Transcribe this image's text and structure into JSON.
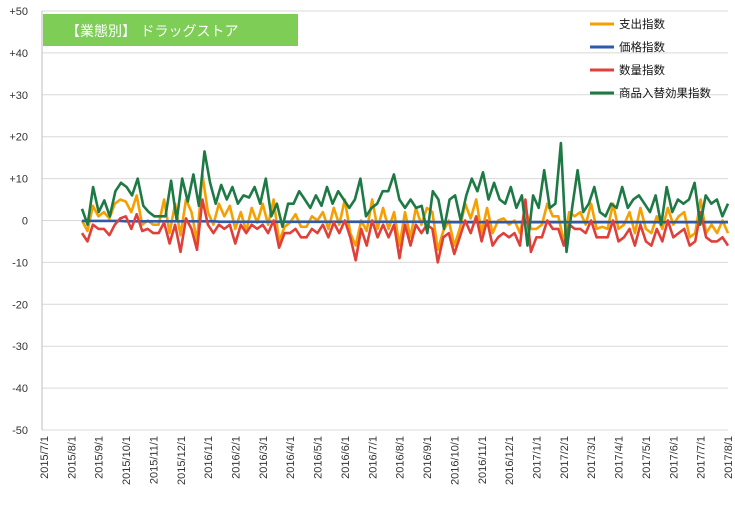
{
  "chart_data": {
    "type": "line",
    "title": "【業態別】 ドラッグストア",
    "ylim": [
      -50,
      50
    ],
    "ytick_labels": [
      "+50",
      "+40",
      "+30",
      "+20",
      "+10",
      "0",
      "-10",
      "-20",
      "-30",
      "-40",
      "-50"
    ],
    "x_tick_labels": [
      "2015/7/1",
      "2015/8/1",
      "2015/9/1",
      "2015/10/1",
      "2015/11/1",
      "2015/12/1",
      "2016/1/1",
      "2016/2/1",
      "2016/3/1",
      "2016/4/1",
      "2016/5/1",
      "2016/6/1",
      "2016/7/1",
      "2016/8/1",
      "2016/9/1",
      "2016/10/1",
      "2016/11/1",
      "2016/12/1",
      "2017/1/1",
      "2017/2/1",
      "2017/3/1",
      "2017/4/1",
      "2017/5/1",
      "2017/6/1",
      "2017/7/1",
      "2017/8/1"
    ],
    "legend_position": "top-right",
    "grid": true,
    "series": [
      {
        "name": "支出指数",
        "color": "#f5a000",
        "values": [
          0,
          -2.5,
          3.5,
          1,
          2,
          0.5,
          4,
          5,
          4.5,
          2,
          6,
          -1,
          0,
          -1,
          -1,
          5,
          -3,
          4,
          -3.5,
          5,
          2,
          -5,
          11,
          2,
          -1,
          4,
          1,
          3.5,
          -2,
          2,
          -2.5,
          3,
          -0.5,
          4,
          -1,
          5,
          -5,
          -1.5,
          -0.5,
          1.5,
          -1.5,
          -1.5,
          1,
          0,
          2,
          -2,
          3,
          -1,
          5,
          -3,
          -6,
          0,
          -2.5,
          5,
          -2,
          3,
          -2,
          2,
          -6,
          2,
          -4,
          3,
          -1,
          3,
          2,
          -7,
          -2.5,
          0,
          -6,
          -2,
          4,
          0.5,
          5,
          -3,
          3,
          -3,
          0,
          0.5,
          -1,
          0,
          -3,
          3,
          -2,
          -2,
          -1,
          4,
          1,
          1,
          -5,
          2,
          1,
          2,
          -1,
          4,
          -2,
          -1.5,
          -2,
          4,
          -2,
          -1,
          2,
          -3,
          3,
          -2,
          -3,
          1,
          -2,
          3,
          -1,
          1,
          2,
          -4,
          -3,
          5,
          -3,
          -1,
          -3,
          0,
          -3
        ]
      },
      {
        "name": "価格指数",
        "color": "#2e5aa8",
        "values": [
          -0.1,
          -0.1,
          -0.1,
          -0.1,
          -0.1,
          -0.1,
          -0.1,
          -0.1,
          -0.2,
          -0.2,
          -0.2,
          -0.2,
          -0.2,
          -0.2,
          -0.2,
          -0.2,
          -0.2,
          -0.2,
          -0.2,
          -0.2,
          -0.2,
          -0.2,
          -0.2,
          -0.2,
          -0.2,
          -0.3,
          -0.3,
          -0.3,
          -0.3,
          -0.3,
          -0.3,
          -0.3,
          -0.3,
          -0.3,
          -0.3,
          -0.3,
          -0.3,
          -0.3,
          -0.3,
          -0.3,
          -0.3,
          -0.3,
          -0.3,
          -0.3,
          -0.3,
          -0.3,
          -0.3,
          -0.3,
          -0.3,
          -0.3,
          -0.3,
          -0.3,
          -0.3,
          -0.3,
          -0.3,
          -0.3,
          -0.3,
          -0.3,
          -0.3,
          -0.3,
          -0.3,
          -0.3,
          -0.3,
          -0.3,
          -0.4,
          -0.4,
          -0.4,
          -0.4,
          -0.4,
          -0.4,
          -0.4,
          -0.4,
          -0.4,
          -0.4,
          -0.4,
          -0.4,
          -0.4,
          -0.4,
          -0.4,
          -0.4,
          -0.4,
          -0.4,
          -0.4,
          -0.4,
          -0.4,
          -0.4,
          -0.4,
          -0.4,
          -0.4,
          -0.4,
          -0.4,
          -0.4,
          -0.4,
          -0.4,
          -0.4,
          -0.4,
          -0.4,
          -0.4,
          -0.4,
          -0.4,
          -0.4,
          -0.4,
          -0.4,
          -0.4,
          -0.4,
          -0.4,
          -0.4,
          -0.4,
          -0.4,
          -0.4,
          -0.4,
          -0.4,
          -0.4,
          -0.4,
          -0.4,
          -0.4,
          -0.4,
          -0.4
        ]
      },
      {
        "name": "数量指数",
        "color": "#e0403a",
        "values": [
          -3,
          -5,
          -1,
          -2,
          -2,
          -3.5,
          -1,
          0.5,
          1,
          -2,
          1.5,
          -2.5,
          -2,
          -3,
          -3,
          -0.5,
          -5.5,
          -1,
          -7.5,
          0.5,
          -2,
          -7,
          5,
          -1,
          -3,
          -1,
          -2,
          -1,
          -5.5,
          -1,
          -3,
          -1,
          -2,
          -1,
          -3,
          0,
          -6.5,
          -3,
          -3,
          -2,
          -4,
          -4,
          -2,
          -3,
          -1,
          -4,
          -0.5,
          -3,
          0,
          -4,
          -9.5,
          -2,
          -6,
          0,
          -4,
          -1,
          -4,
          -1,
          -9,
          -1,
          -6,
          -1,
          -3,
          -1,
          -2,
          -10,
          -4,
          -3,
          -8,
          -4,
          0,
          -3,
          1,
          -5,
          0,
          -6,
          -4,
          -3,
          -4,
          -3,
          -6,
          5,
          -7.5,
          -4,
          -4,
          0,
          -2,
          -2,
          -6,
          -1,
          -2,
          -2,
          -3,
          0,
          -4,
          -4,
          -4,
          0,
          -5,
          -4,
          -2,
          -6,
          -1,
          -5,
          -6,
          -2,
          -5,
          0,
          -4,
          -3,
          -2,
          -6,
          -5,
          2,
          -4,
          -5,
          -5,
          -4,
          -6
        ]
      },
      {
        "name": "商品入替効果指数",
        "color": "#1e7a45",
        "values": [
          2.8,
          -1,
          8,
          2,
          4.8,
          1,
          7,
          9,
          8,
          6,
          10,
          3.5,
          2,
          1,
          1,
          1,
          9.5,
          0,
          10,
          4.5,
          11,
          3.5,
          16.5,
          9,
          4,
          8.5,
          5,
          8,
          4,
          6,
          5.5,
          8,
          4,
          10,
          1,
          4,
          -1.5,
          4,
          4,
          7,
          5,
          3,
          6,
          3.5,
          8,
          4,
          7,
          5,
          3,
          5,
          10,
          1,
          3,
          4,
          7,
          7,
          11,
          5,
          3,
          5,
          3,
          3.5,
          -3,
          7,
          5,
          -2,
          5,
          6,
          0,
          6,
          10,
          7,
          11.5,
          5,
          9,
          5,
          4,
          8,
          3,
          6,
          -6,
          6,
          3,
          12,
          3,
          4,
          18.5,
          -7.5,
          3,
          12,
          2,
          4,
          8,
          2,
          1,
          4,
          3,
          8,
          3,
          5,
          6,
          4,
          2,
          6,
          -1,
          8,
          2,
          5,
          4,
          5,
          9,
          -1,
          6,
          4,
          5,
          1,
          4
        ]
      }
    ]
  }
}
